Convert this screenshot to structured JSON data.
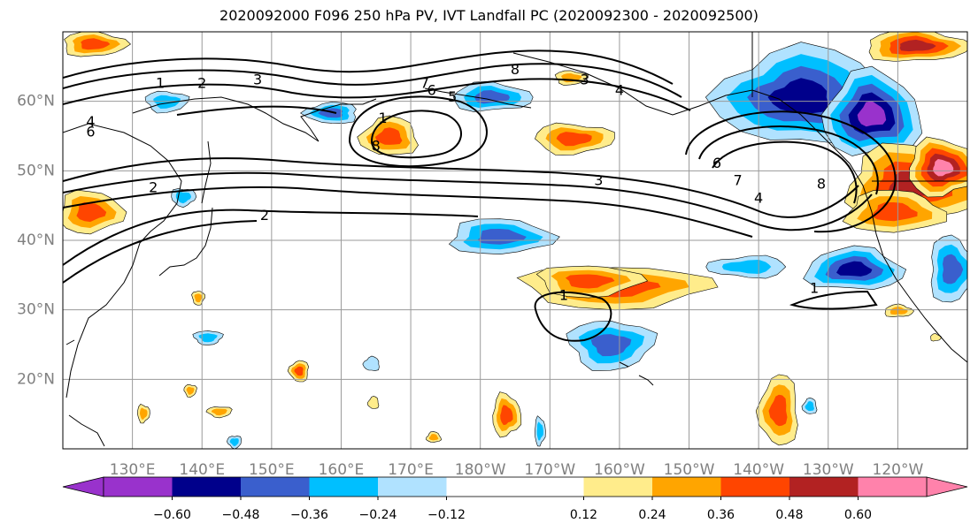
{
  "title": "2020092000 F096 250 hPa PV, IVT Landfall PC (2020092300 - 2020092500)",
  "colors": {
    "land_outline": "#000000",
    "grid": "#9a9a9a",
    "contour": "#000000"
  },
  "map": {
    "projection": "PlateCarree",
    "lon_range": [
      120,
      250
    ],
    "lat_range": [
      10,
      70
    ],
    "lon_ticks": [
      {
        "lon": 130,
        "label": "130°E"
      },
      {
        "lon": 140,
        "label": "140°E"
      },
      {
        "lon": 150,
        "label": "150°E"
      },
      {
        "lon": 160,
        "label": "160°E"
      },
      {
        "lon": 170,
        "label": "170°E"
      },
      {
        "lon": 180,
        "label": "180°W"
      },
      {
        "lon": 190,
        "label": "170°W"
      },
      {
        "lon": 200,
        "label": "160°W"
      },
      {
        "lon": 210,
        "label": "150°W"
      },
      {
        "lon": 220,
        "label": "140°W"
      },
      {
        "lon": 230,
        "label": "130°W"
      },
      {
        "lon": 240,
        "label": "120°W"
      }
    ],
    "lat_ticks": [
      {
        "lat": 20,
        "label": "20°N"
      },
      {
        "lat": 30,
        "label": "30°N"
      },
      {
        "lat": 40,
        "label": "40°N"
      },
      {
        "lat": 50,
        "label": "50°N"
      },
      {
        "lat": 60,
        "label": "60°N"
      }
    ]
  },
  "colorbar": {
    "boundaries": [
      -0.72,
      -0.6,
      -0.48,
      -0.36,
      -0.24,
      -0.12,
      0.12,
      0.24,
      0.36,
      0.48,
      0.6,
      0.72
    ],
    "colors": [
      "#9932cc",
      "#00008b",
      "#3a5fcd",
      "#00bfff",
      "#b0e2ff",
      "#ffffff",
      "#ffec8b",
      "#ffa500",
      "#ff4500",
      "#b22222",
      "#ff82ab"
    ],
    "under_color": "#9932cc",
    "over_color": "#ff82ab",
    "extend": "both",
    "tick_labels": [
      {
        "value": -0.6,
        "label": "−0.60"
      },
      {
        "value": -0.48,
        "label": "−0.48"
      },
      {
        "value": -0.36,
        "label": "−0.36"
      },
      {
        "value": -0.24,
        "label": "−0.24"
      },
      {
        "value": -0.12,
        "label": "−0.12"
      },
      {
        "value": 0.12,
        "label": "0.12"
      },
      {
        "value": 0.24,
        "label": "0.24"
      },
      {
        "value": 0.36,
        "label": "0.36"
      },
      {
        "value": 0.48,
        "label": "0.48"
      },
      {
        "value": 0.6,
        "label": "0.60"
      }
    ]
  },
  "pv_contour_labels": [
    {
      "text": "1",
      "lon": 134,
      "lat": 62.5
    },
    {
      "text": "2",
      "lon": 140,
      "lat": 62.5
    },
    {
      "text": "3",
      "lon": 148,
      "lat": 63
    },
    {
      "text": "8",
      "lon": 185,
      "lat": 64.5
    },
    {
      "text": "3",
      "lon": 195,
      "lat": 63
    },
    {
      "text": "7",
      "lon": 172,
      "lat": 62.5
    },
    {
      "text": "6",
      "lon": 173,
      "lat": 61.5
    },
    {
      "text": "5",
      "lon": 176,
      "lat": 60.5
    },
    {
      "text": "4",
      "lon": 200,
      "lat": 61.5
    },
    {
      "text": "4",
      "lon": 124,
      "lat": 57
    },
    {
      "text": "6",
      "lon": 124,
      "lat": 55.5
    },
    {
      "text": "1",
      "lon": 166,
      "lat": 57.5
    },
    {
      "text": "8",
      "lon": 165,
      "lat": 53.5
    },
    {
      "text": "2",
      "lon": 133,
      "lat": 47.5
    },
    {
      "text": "2",
      "lon": 149,
      "lat": 43.5
    },
    {
      "text": "6",
      "lon": 214,
      "lat": 51
    },
    {
      "text": "3",
      "lon": 197,
      "lat": 48.5
    },
    {
      "text": "7",
      "lon": 217,
      "lat": 48.5
    },
    {
      "text": "4",
      "lon": 220,
      "lat": 46
    },
    {
      "text": "8",
      "lon": 229,
      "lat": 48
    },
    {
      "text": "1",
      "lon": 192,
      "lat": 32
    },
    {
      "text": "1",
      "lon": 228,
      "lat": 33
    }
  ]
}
